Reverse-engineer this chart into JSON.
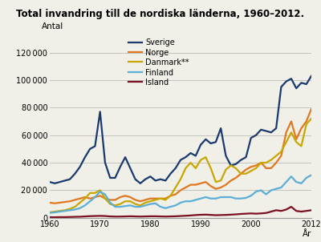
{
  "title": "Total invandring till de nordiska länderna, 1960–2012.",
  "ylabel": "Antal",
  "xlabel": "År",
  "ylim": [
    0,
    130000
  ],
  "yticks": [
    0,
    20000,
    40000,
    60000,
    80000,
    100000,
    120000
  ],
  "years": [
    1960,
    1961,
    1962,
    1963,
    1964,
    1965,
    1966,
    1967,
    1968,
    1969,
    1970,
    1971,
    1972,
    1973,
    1974,
    1975,
    1976,
    1977,
    1978,
    1979,
    1980,
    1981,
    1982,
    1983,
    1984,
    1985,
    1986,
    1987,
    1988,
    1989,
    1990,
    1991,
    1992,
    1993,
    1994,
    1995,
    1996,
    1997,
    1998,
    1999,
    2000,
    2001,
    2002,
    2003,
    2004,
    2005,
    2006,
    2007,
    2008,
    2009,
    2010,
    2011,
    2012
  ],
  "sverige": [
    26000,
    25000,
    26000,
    27000,
    28000,
    32000,
    37000,
    44000,
    50000,
    52000,
    77000,
    40000,
    29000,
    29000,
    37000,
    44000,
    36000,
    28000,
    25000,
    28000,
    30000,
    27000,
    28000,
    27000,
    32000,
    36000,
    42000,
    44000,
    47000,
    45000,
    53000,
    57000,
    54000,
    55000,
    65000,
    45000,
    38000,
    39000,
    42000,
    44000,
    58000,
    60000,
    64000,
    63000,
    62000,
    65000,
    95000,
    99000,
    101000,
    94000,
    98000,
    97000,
    103000
  ],
  "norge": [
    11000,
    10500,
    11000,
    11500,
    12000,
    13000,
    14000,
    15000,
    14000,
    15000,
    16000,
    14000,
    13000,
    13000,
    15000,
    16000,
    15000,
    13000,
    12000,
    13000,
    14000,
    14000,
    14000,
    14000,
    16000,
    17000,
    20000,
    22000,
    24000,
    24000,
    25000,
    26000,
    23000,
    21000,
    22000,
    24000,
    27000,
    29000,
    32000,
    35000,
    37000,
    38000,
    40000,
    36000,
    36000,
    40000,
    45000,
    62000,
    70000,
    57000,
    65000,
    70000,
    79000
  ],
  "danmark": [
    4000,
    4500,
    5000,
    5500,
    6500,
    8000,
    11000,
    14000,
    18000,
    18000,
    20000,
    14000,
    10000,
    9000,
    10000,
    12000,
    12000,
    10000,
    9000,
    11000,
    12000,
    13000,
    14000,
    13000,
    16000,
    22000,
    28000,
    36000,
    40000,
    36000,
    42000,
    44000,
    36000,
    26000,
    27000,
    35000,
    38000,
    36000,
    32000,
    32000,
    34000,
    36000,
    40000,
    40000,
    42000,
    45000,
    48000,
    55000,
    62000,
    55000,
    52000,
    68000,
    72000
  ],
  "finland": [
    3500,
    4000,
    4500,
    5000,
    5500,
    6000,
    7000,
    9000,
    12000,
    15000,
    19000,
    17000,
    11000,
    8000,
    8000,
    8500,
    9000,
    8000,
    8000,
    9000,
    10000,
    10500,
    8000,
    7000,
    8000,
    9000,
    11000,
    12000,
    12000,
    13000,
    14000,
    15000,
    14000,
    14000,
    15000,
    15000,
    15000,
    14000,
    14000,
    14500,
    16000,
    19000,
    20000,
    17000,
    20000,
    21000,
    22000,
    26000,
    30000,
    26000,
    25000,
    29000,
    31000
  ],
  "island": [
    400,
    400,
    500,
    500,
    600,
    700,
    800,
    1000,
    1200,
    1300,
    1400,
    1300,
    1000,
    900,
    900,
    1000,
    1100,
    1000,
    900,
    1000,
    1100,
    1100,
    1000,
    900,
    1000,
    1100,
    1300,
    1500,
    1700,
    2000,
    2200,
    2300,
    2100,
    1900,
    2000,
    2100,
    2300,
    2500,
    2800,
    3000,
    3200,
    3000,
    3200,
    3500,
    4500,
    5500,
    5000,
    6000,
    8000,
    5000,
    4500,
    5000,
    5500
  ],
  "colors": {
    "sverige": "#1a3a6e",
    "norge": "#e07820",
    "danmark": "#c8a800",
    "finland": "#5baed6",
    "island": "#7a1020"
  },
  "legend_labels": [
    "Sverige",
    "Norge",
    "Danmark**",
    "Finland",
    "Island"
  ],
  "background_color": "#f0efe8"
}
